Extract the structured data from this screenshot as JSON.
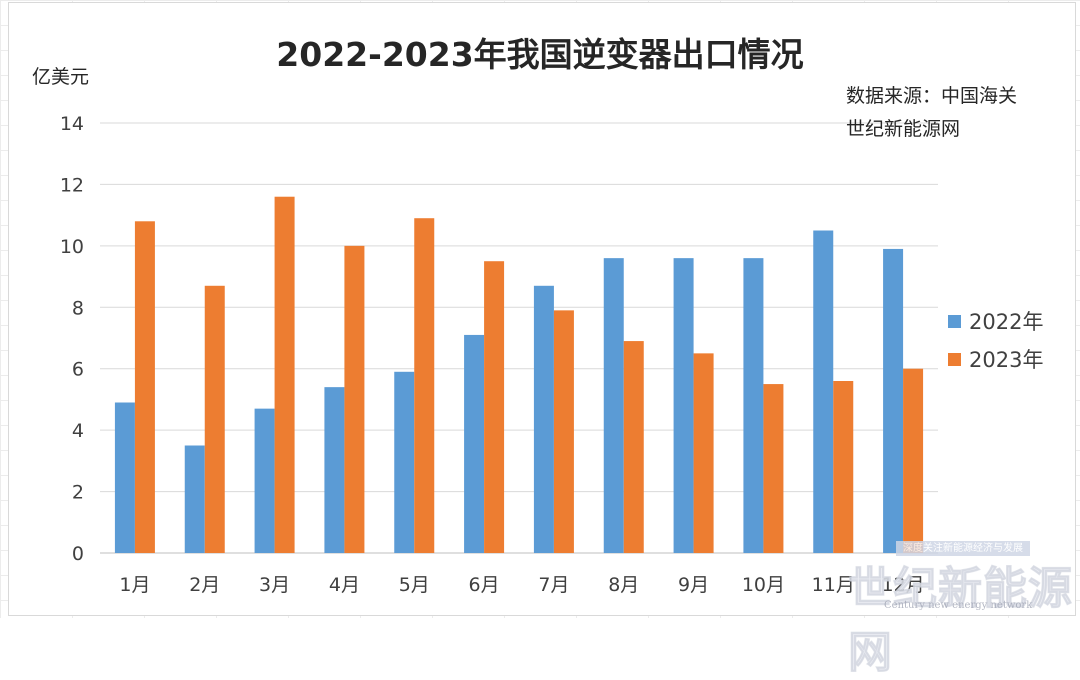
{
  "chart_data": {
    "type": "bar",
    "title": "2022-2023年我国逆变器出口情况",
    "ylabel": "亿美元",
    "xlabel": "",
    "categories": [
      "1月",
      "2月",
      "3月",
      "4月",
      "5月",
      "6月",
      "7月",
      "8月",
      "9月",
      "10月",
      "11月",
      "12月"
    ],
    "series": [
      {
        "name": "2022年",
        "color": "#5b9bd5",
        "values": [
          4.9,
          3.5,
          4.7,
          5.4,
          5.9,
          7.1,
          8.7,
          9.6,
          9.6,
          9.6,
          10.5,
          9.9
        ]
      },
      {
        "name": "2023年",
        "color": "#ed7d31",
        "values": [
          10.8,
          8.7,
          11.6,
          10.0,
          10.9,
          9.5,
          7.9,
          6.9,
          6.5,
          5.5,
          5.6,
          6.0
        ]
      }
    ],
    "ylim": [
      0,
      14
    ],
    "yticks": [
      0,
      2,
      4,
      6,
      8,
      10,
      12,
      14
    ],
    "grid": true,
    "legend_position": "right",
    "annotations": [
      "数据来源：中国海关",
      "世纪新能源网"
    ]
  },
  "watermark": {
    "text": "世纪新能源网",
    "subtitle": "Century new energy network",
    "tag": "深度关注新能源经济与发展"
  }
}
